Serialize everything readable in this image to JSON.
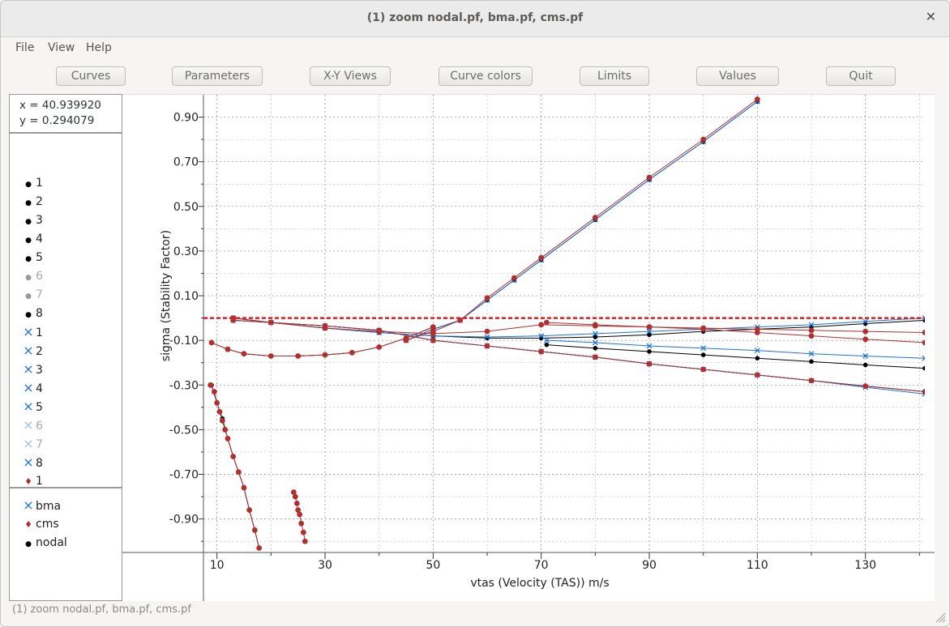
{
  "window": {
    "title": "(1) zoom nodal.pf, bma.pf, cms.pf"
  },
  "menu": [
    "File",
    "View",
    "Help"
  ],
  "toolbar": [
    "Curves",
    "Parameters",
    "X-Y Views",
    "Curve colors",
    "Limits",
    "Values",
    "Quit"
  ],
  "coords": {
    "x_text": "x = 40.939920",
    "y_text": "y = 0.294079"
  },
  "curve_list": [
    {
      "marker": "dot",
      "label": "1",
      "color": "#000000"
    },
    {
      "marker": "dot",
      "label": "2",
      "color": "#000000"
    },
    {
      "marker": "dot",
      "label": "3",
      "color": "#000000"
    },
    {
      "marker": "dot",
      "label": "4",
      "color": "#000000"
    },
    {
      "marker": "dot",
      "label": "5",
      "color": "#000000"
    },
    {
      "marker": "dot",
      "label": "6",
      "color": "#999999"
    },
    {
      "marker": "dot",
      "label": "7",
      "color": "#999999"
    },
    {
      "marker": "dot",
      "label": "8",
      "color": "#000000"
    },
    {
      "marker": "cross",
      "label": "1",
      "color": "#1e73d8"
    },
    {
      "marker": "cross",
      "label": "2",
      "color": "#1e73d8"
    },
    {
      "marker": "cross",
      "label": "3",
      "color": "#1e73d8"
    },
    {
      "marker": "cross",
      "label": "4",
      "color": "#1e73d8"
    },
    {
      "marker": "cross",
      "label": "5",
      "color": "#1e73d8"
    },
    {
      "marker": "cross",
      "label": "6",
      "color": "#9dbde6"
    },
    {
      "marker": "cross",
      "label": "7",
      "color": "#9dbde6"
    },
    {
      "marker": "cross",
      "label": "8",
      "color": "#1e73d8"
    },
    {
      "marker": "drop",
      "label": "1",
      "color": "#b03030"
    }
  ],
  "legend": [
    {
      "marker": "cross",
      "label": "bma",
      "color": "#1e73d8"
    },
    {
      "marker": "drop",
      "label": "cms",
      "color": "#b03030"
    },
    {
      "marker": "dot",
      "label": "nodal",
      "color": "#000000"
    }
  ],
  "statusbar": "(1) zoom nodal.pf, bma.pf, cms.pf",
  "colors": {
    "nodal": "#000000",
    "bma": "#1e73d8",
    "cms": "#b03030",
    "zero_line": "#d62020"
  },
  "chart_data": {
    "type": "line",
    "xlabel": "vtas (Velocity (TAS)) m/s",
    "ylabel": "sigma (Stability Factor)",
    "xlim": [
      7.5,
      141
    ],
    "ylim": [
      -1.05,
      1.0
    ],
    "xticks": [
      10,
      30,
      50,
      70,
      90,
      110,
      130
    ],
    "yticks": [
      0.9,
      0.7,
      0.5,
      0.3,
      0.1,
      -0.1,
      -0.3,
      -0.5,
      -0.7,
      -0.9
    ],
    "ytick_labels": [
      "0.90",
      "0.70",
      "0.50",
      "0.30",
      "0.10",
      "-0.10",
      "-0.30",
      "-0.50",
      "-0.70",
      "-0.90"
    ],
    "grid": true,
    "reference_line": {
      "y": 0.0,
      "style": "dashed"
    },
    "series": [
      {
        "group": "nodal",
        "x": [
          45,
          50,
          55,
          60,
          65,
          70,
          80,
          90,
          100,
          110
        ],
        "y": [
          -0.1,
          -0.05,
          -0.01,
          0.08,
          0.17,
          0.26,
          0.44,
          0.62,
          0.79,
          0.97
        ]
      },
      {
        "group": "nodal",
        "x": [
          9,
          12,
          15,
          20,
          25,
          30,
          35,
          40,
          45,
          50
        ],
        "y": [
          -0.11,
          -0.14,
          -0.16,
          -0.17,
          -0.17,
          -0.165,
          -0.155,
          -0.13,
          -0.09,
          -0.04
        ]
      },
      {
        "group": "nodal",
        "x": [
          13,
          20,
          30,
          40,
          50,
          60,
          70,
          80,
          90,
          100,
          110,
          120,
          130,
          141
        ],
        "y": [
          0.0,
          -0.02,
          -0.045,
          -0.065,
          -0.08,
          -0.09,
          -0.09,
          -0.085,
          -0.075,
          -0.06,
          -0.05,
          -0.04,
          -0.025,
          -0.01
        ]
      },
      {
        "group": "nodal",
        "x": [
          13,
          20,
          30,
          40,
          50,
          60,
          70,
          80,
          90,
          100,
          110,
          120,
          130,
          141
        ],
        "y": [
          -0.01,
          -0.02,
          -0.035,
          -0.055,
          -0.1,
          -0.125,
          -0.15,
          -0.175,
          -0.205,
          -0.23,
          -0.255,
          -0.28,
          -0.305,
          -0.33
        ]
      },
      {
        "group": "nodal",
        "x": [
          71,
          80,
          90,
          100,
          110,
          120,
          130,
          141
        ],
        "y": [
          -0.12,
          -0.135,
          -0.15,
          -0.165,
          -0.18,
          -0.195,
          -0.21,
          -0.225
        ]
      },
      {
        "group": "nodal",
        "x": [
          9,
          10,
          11,
          12,
          13,
          14,
          15,
          16,
          17,
          17.8
        ],
        "y": [
          -0.3,
          -0.38,
          -0.45,
          -0.54,
          -0.62,
          -0.69,
          -0.76,
          -0.86,
          -0.95,
          -1.03
        ]
      },
      {
        "group": "bma",
        "x": [
          45,
          50,
          55,
          60,
          65,
          70,
          80,
          90,
          100,
          110
        ],
        "y": [
          -0.1,
          -0.05,
          -0.01,
          0.08,
          0.17,
          0.26,
          0.44,
          0.62,
          0.79,
          0.97
        ]
      },
      {
        "group": "bma",
        "x": [
          13,
          20,
          30,
          40,
          50,
          60,
          70,
          80,
          90,
          100,
          110,
          120,
          130,
          141
        ],
        "y": [
          0.0,
          -0.02,
          -0.045,
          -0.065,
          -0.08,
          -0.085,
          -0.08,
          -0.07,
          -0.06,
          -0.05,
          -0.04,
          -0.03,
          -0.015,
          0.0
        ]
      },
      {
        "group": "bma",
        "x": [
          71,
          80,
          90,
          100,
          110,
          120,
          130,
          141
        ],
        "y": [
          -0.1,
          -0.11,
          -0.125,
          -0.135,
          -0.145,
          -0.16,
          -0.17,
          -0.18
        ]
      },
      {
        "group": "bma",
        "x": [
          13,
          20,
          30,
          40,
          50,
          60,
          70,
          80,
          90,
          100,
          110,
          120,
          130,
          141
        ],
        "y": [
          -0.01,
          -0.02,
          -0.035,
          -0.055,
          -0.1,
          -0.125,
          -0.15,
          -0.175,
          -0.205,
          -0.23,
          -0.255,
          -0.28,
          -0.31,
          -0.34
        ]
      },
      {
        "group": "cms",
        "x": [
          45,
          50,
          55,
          60,
          65,
          70,
          80,
          90,
          100,
          110
        ],
        "y": [
          -0.1,
          -0.06,
          -0.01,
          0.09,
          0.18,
          0.27,
          0.45,
          0.63,
          0.8,
          0.98
        ]
      },
      {
        "group": "cms",
        "x": [
          9,
          12,
          15,
          20,
          25,
          30,
          35,
          40,
          45,
          50
        ],
        "y": [
          -0.11,
          -0.14,
          -0.16,
          -0.17,
          -0.17,
          -0.165,
          -0.155,
          -0.13,
          -0.09,
          -0.04
        ]
      },
      {
        "group": "cms",
        "x": [
          13,
          20,
          30,
          40,
          50,
          60,
          70,
          80,
          90,
          100,
          110,
          120,
          130,
          141
        ],
        "y": [
          0.0,
          -0.02,
          -0.045,
          -0.06,
          -0.07,
          -0.06,
          -0.03,
          -0.035,
          -0.04,
          -0.045,
          -0.05,
          -0.055,
          -0.06,
          -0.065
        ]
      },
      {
        "group": "cms",
        "x": [
          71,
          80,
          90,
          100,
          110,
          120,
          130,
          141
        ],
        "y": [
          -0.02,
          -0.03,
          -0.04,
          -0.05,
          -0.065,
          -0.08,
          -0.095,
          -0.11
        ]
      },
      {
        "group": "cms",
        "x": [
          13,
          20,
          30,
          40,
          50,
          60,
          70,
          80,
          90,
          100,
          110,
          120,
          130,
          141
        ],
        "y": [
          -0.01,
          -0.02,
          -0.035,
          -0.055,
          -0.1,
          -0.125,
          -0.15,
          -0.175,
          -0.205,
          -0.23,
          -0.255,
          -0.28,
          -0.305,
          -0.33
        ]
      },
      {
        "group": "cms",
        "x": [
          8.8,
          9.5,
          10,
          10.5,
          11,
          11.5,
          12,
          13,
          14,
          15,
          16,
          17,
          17.8
        ],
        "y": [
          -0.3,
          -0.33,
          -0.38,
          -0.42,
          -0.46,
          -0.5,
          -0.54,
          -0.62,
          -0.69,
          -0.76,
          -0.86,
          -0.95,
          -1.03
        ]
      },
      {
        "group": "cms",
        "x": [
          24.2,
          24.5,
          24.8,
          25,
          25.3,
          25.6,
          26,
          26.3
        ],
        "y": [
          -0.78,
          -0.8,
          -0.83,
          -0.86,
          -0.88,
          -0.92,
          -0.96,
          -1.0
        ]
      }
    ]
  }
}
